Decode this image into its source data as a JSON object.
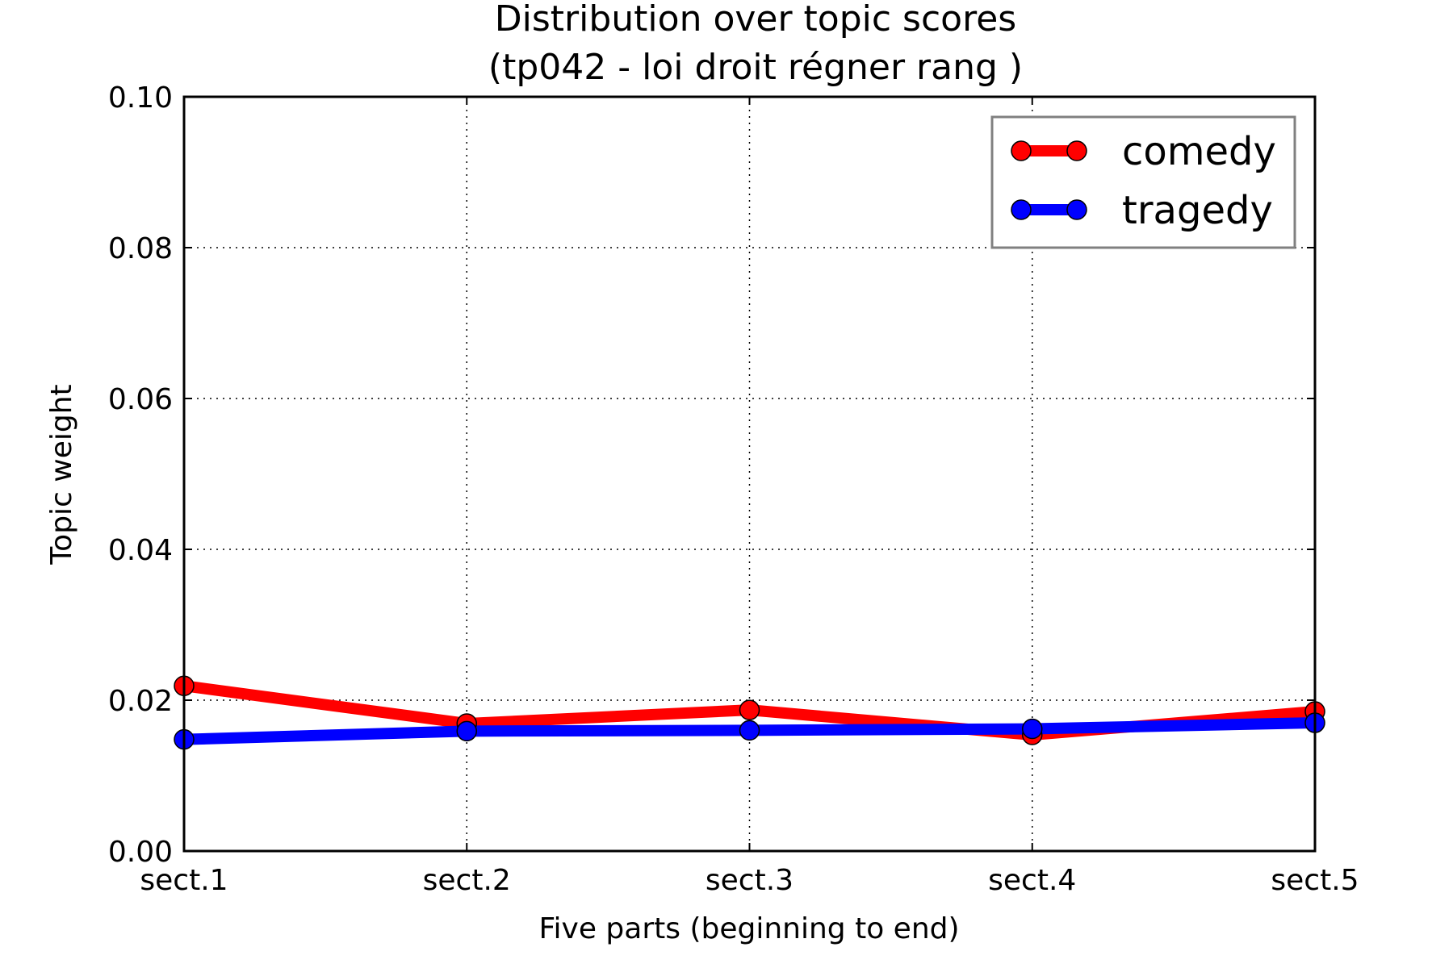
{
  "chart_data": {
    "type": "line",
    "title": "Distribution over topic scores",
    "subtitle": "(tp042 - loi droit régner rang )",
    "xlabel": "Five parts (beginning to end)",
    "ylabel": "Topic weight",
    "categories": [
      "sect.1",
      "sect.2",
      "sect.3",
      "sect.4",
      "sect.5"
    ],
    "ylim": [
      0,
      0.1
    ],
    "yticks": [
      "0.00",
      "0.02",
      "0.04",
      "0.06",
      "0.08",
      "0.10"
    ],
    "ytick_values": [
      0,
      0.02,
      0.04,
      0.06,
      0.08,
      0.1
    ],
    "grid": true,
    "legend_position": "top-right",
    "series": [
      {
        "name": "comedy",
        "color": "#ff0000",
        "values": [
          0.0219,
          0.0169,
          0.0187,
          0.0154,
          0.0185
        ]
      },
      {
        "name": "tragedy",
        "color": "#0000ff",
        "values": [
          0.0148,
          0.0159,
          0.016,
          0.0162,
          0.017
        ]
      }
    ]
  }
}
